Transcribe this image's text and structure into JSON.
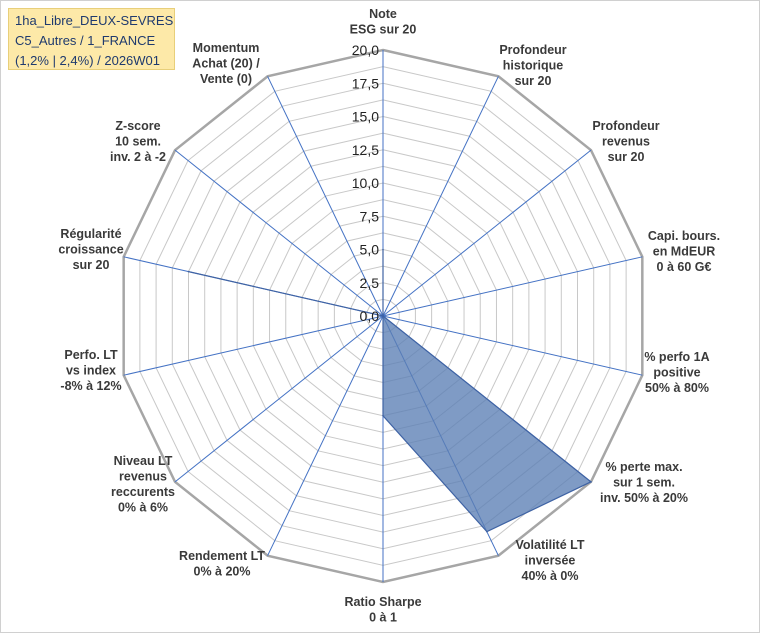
{
  "title_lines": [
    "1ha_Libre_DEUX-SEVRES",
    "C5_Autres / 1_FRANCE",
    "(1,2% | 2,4%) / 2026W01"
  ],
  "colors": {
    "fill": "#5b7fb5",
    "stroke": "#3f63a4",
    "grid": "#c8c8c8",
    "outer_ring": "#a6a6a6",
    "spoke": "#4472c4",
    "title_bg": "#fde9a8"
  },
  "chart_data": {
    "type": "radar",
    "title": "",
    "rlim": [
      0,
      20
    ],
    "grid": true,
    "ticks": [
      "0,0",
      "2,5",
      "5,0",
      "7,5",
      "10,0",
      "12,5",
      "15,0",
      "17,5",
      "20,0"
    ],
    "axes": [
      {
        "lines": [
          "Note",
          "ESG sur 20"
        ]
      },
      {
        "lines": [
          "Profondeur",
          "historique",
          "sur 20"
        ]
      },
      {
        "lines": [
          "Profondeur",
          "revenus",
          "sur 20"
        ]
      },
      {
        "lines": [
          "Capi. bours.",
          "en MdEUR",
          "0 à 60 G€"
        ]
      },
      {
        "lines": [
          "% perfo 1A",
          "positive",
          "50% à 80%"
        ]
      },
      {
        "lines": [
          "% perte max.",
          "sur 1 sem.",
          "inv. 50% à 20%"
        ]
      },
      {
        "lines": [
          "Volatilité LT",
          "inversée",
          "40% à 0%"
        ]
      },
      {
        "lines": [
          "Ratio Sharpe",
          "0 à 1"
        ]
      },
      {
        "lines": [
          "Rendement LT",
          "0% à 20%"
        ]
      },
      {
        "lines": [
          "Niveau LT",
          "revenus",
          "reccurents",
          "0% à 6%"
        ]
      },
      {
        "lines": [
          "Perfo. LT",
          "vs index",
          "-8% à 12%"
        ]
      },
      {
        "lines": [
          "Régularité",
          "croissance",
          "sur 20"
        ]
      },
      {
        "lines": [
          "Z-score",
          "10 sem.",
          "inv. 2 à -2"
        ]
      },
      {
        "lines": [
          "Momentum",
          "Achat (20) /",
          "Vente (0)"
        ]
      }
    ],
    "series": [
      {
        "values": [
          5,
          0,
          0,
          0,
          0,
          20,
          18,
          7.5,
          0,
          0,
          0,
          15,
          0,
          0
        ]
      }
    ]
  }
}
